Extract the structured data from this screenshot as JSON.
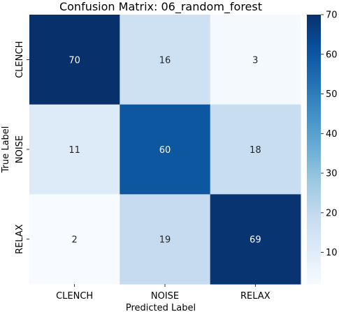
{
  "chart_data": {
    "type": "heatmap",
    "title": "Confusion Matrix: 06_random_forest",
    "xlabel": "Predicted Label",
    "ylabel": "True Label",
    "x_categories": [
      "CLENCH",
      "NOISE",
      "RELAX"
    ],
    "y_categories": [
      "CLENCH",
      "NOISE",
      "RELAX"
    ],
    "values": [
      [
        70,
        16,
        3
      ],
      [
        11,
        60,
        18
      ],
      [
        2,
        19,
        69
      ]
    ],
    "colormap": "Blues",
    "vmin": 2,
    "vmax": 70,
    "colorbar_ticks": [
      10,
      20,
      30,
      40,
      50,
      60,
      70
    ],
    "annotations": true
  }
}
